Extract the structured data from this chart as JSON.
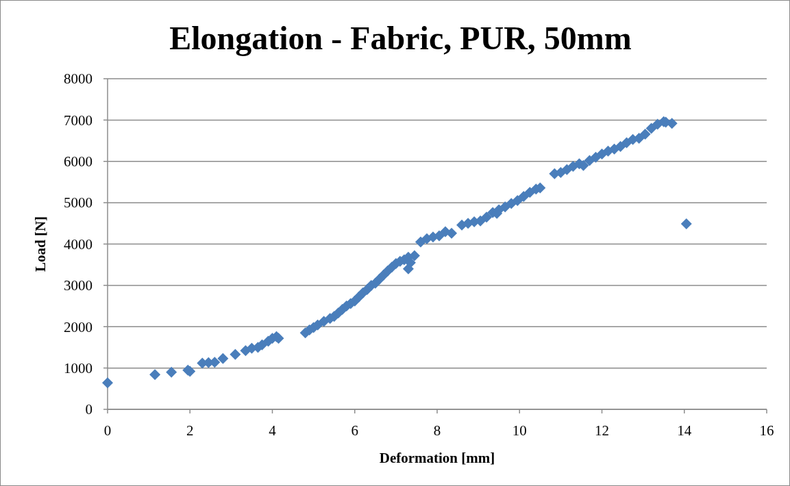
{
  "chart_data": {
    "type": "scatter",
    "title": "Elongation - Fabric, PUR, 50mm",
    "xlabel": "Deformation [mm]",
    "ylabel": "Load [N]",
    "xlim": [
      0,
      16
    ],
    "xticks": [
      0,
      2,
      4,
      6,
      8,
      10,
      12,
      14,
      16
    ],
    "ylim": [
      0,
      8000
    ],
    "yticks": [
      0,
      1000,
      2000,
      3000,
      4000,
      5000,
      6000,
      7000,
      8000
    ],
    "grid": "y",
    "marker": "diamond",
    "series": [
      {
        "color": "#4a7ebb",
        "x": [
          0,
          1.15,
          1.55,
          1.95,
          2.0,
          2.3,
          2.45,
          2.6,
          2.8,
          3.1,
          3.35,
          3.5,
          3.65,
          3.75,
          3.9,
          4.0,
          4.1,
          4.15,
          4.8,
          4.9,
          5.0,
          5.1,
          5.25,
          5.4,
          5.5,
          5.6,
          5.7,
          5.8,
          5.9,
          6.0,
          6.1,
          6.2,
          6.3,
          6.4,
          6.5,
          6.6,
          6.7,
          6.8,
          6.9,
          7.0,
          7.1,
          7.2,
          7.3,
          7.3,
          7.35,
          7.45,
          7.6,
          7.75,
          7.9,
          8.05,
          8.2,
          8.35,
          8.6,
          8.75,
          8.9,
          9.05,
          9.2,
          9.35,
          9.45,
          9.5,
          9.65,
          9.8,
          9.95,
          10.1,
          10.25,
          10.4,
          10.5,
          10.85,
          11.0,
          11.15,
          11.3,
          11.45,
          11.55,
          11.7,
          11.85,
          12.0,
          12.15,
          12.3,
          12.45,
          12.6,
          12.75,
          12.9,
          13.05,
          13.2,
          13.35,
          13.5,
          13.55,
          13.7,
          14.05
        ],
        "values": [
          640,
          840,
          900,
          950,
          920,
          1120,
          1130,
          1140,
          1230,
          1330,
          1420,
          1480,
          1500,
          1560,
          1650,
          1720,
          1760,
          1720,
          1850,
          1920,
          1980,
          2040,
          2130,
          2200,
          2250,
          2330,
          2420,
          2500,
          2560,
          2620,
          2720,
          2820,
          2900,
          3000,
          3050,
          3150,
          3250,
          3350,
          3440,
          3530,
          3580,
          3620,
          3680,
          3400,
          3550,
          3720,
          4050,
          4130,
          4170,
          4200,
          4300,
          4260,
          4460,
          4500,
          4540,
          4560,
          4650,
          4760,
          4740,
          4830,
          4900,
          4980,
          5050,
          5150,
          5250,
          5330,
          5360,
          5700,
          5730,
          5800,
          5880,
          5940,
          5900,
          6020,
          6100,
          6180,
          6250,
          6300,
          6360,
          6450,
          6530,
          6560,
          6660,
          6800,
          6900,
          6960,
          6950,
          6920,
          4490
        ]
      }
    ]
  }
}
